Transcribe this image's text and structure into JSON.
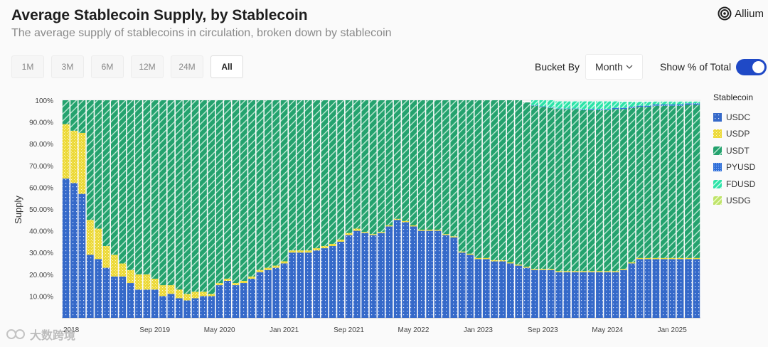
{
  "header": {
    "title": "Average Stablecoin Supply, by Stablecoin",
    "subtitle": "The average supply of stablecoins in circulation, broken down by stablecoin",
    "brand": "Allium"
  },
  "controls": {
    "ranges": [
      {
        "label": "1M",
        "active": false
      },
      {
        "label": "3M",
        "active": false
      },
      {
        "label": "6M",
        "active": false
      },
      {
        "label": "12M",
        "active": false
      },
      {
        "label": "24M",
        "active": false
      },
      {
        "label": "All",
        "active": true
      }
    ],
    "bucket_label": "Bucket By",
    "bucket_value": "Month",
    "show_pct_label": "Show % of Total",
    "show_pct_on": true
  },
  "watermark": "大数跨境",
  "chart_data": {
    "type": "bar",
    "stacked": true,
    "title": "",
    "xlabel": "",
    "ylabel": "Supply",
    "ylim": [
      0,
      100
    ],
    "yticks": [
      "10.00%",
      "20.00%",
      "30.00%",
      "40.00%",
      "50.00%",
      "60.00%",
      "70.00%",
      "80.00%",
      "90.00%",
      "100%"
    ],
    "xtick_labels": [
      {
        "index": 11,
        "label": "Sep 2019"
      },
      {
        "index": 19,
        "label": "May 2020"
      },
      {
        "index": 27,
        "label": "Jan 2021"
      },
      {
        "index": 35,
        "label": "Sep 2021"
      },
      {
        "index": 43,
        "label": "May 2022"
      },
      {
        "index": 51,
        "label": "Jan 2023"
      },
      {
        "index": 59,
        "label": "Sep 2023"
      },
      {
        "index": 67,
        "label": "May 2024"
      },
      {
        "index": 75,
        "label": "Jan 2025"
      }
    ],
    "first_tick_label": "2018",
    "legend_title": "Stablecoin",
    "legend_position": "right",
    "series": [
      {
        "name": "USDC",
        "color": "#3569c9",
        "pattern": "dots",
        "values": [
          64,
          62,
          57,
          29,
          27,
          23,
          19,
          19,
          16,
          13,
          13,
          13,
          10,
          11,
          9,
          8,
          9,
          10,
          10,
          15,
          17,
          15,
          16,
          18,
          21,
          22,
          23,
          25,
          30,
          30,
          30,
          31,
          32,
          33,
          35,
          38,
          40,
          39,
          38,
          39,
          42,
          45,
          44,
          42,
          40,
          40,
          40,
          38,
          37,
          30,
          29,
          27,
          27,
          26,
          26,
          25,
          24,
          23,
          22,
          22,
          22,
          21,
          21,
          21,
          21,
          21,
          21,
          21,
          21,
          22,
          25,
          27,
          27,
          27,
          27,
          27,
          27,
          27,
          27
        ]
      },
      {
        "name": "USDP",
        "color": "#ecd938",
        "pattern": "checker",
        "values": [
          25,
          24,
          28,
          16,
          14,
          10,
          10,
          6,
          6,
          7,
          7,
          5,
          5,
          4,
          4,
          3,
          3,
          2,
          1,
          1,
          1,
          1,
          1,
          1,
          1,
          1,
          1,
          1,
          1,
          1,
          1,
          1,
          1,
          1,
          1,
          1,
          1,
          0.5,
          0.5,
          0.5,
          0.5,
          0.5,
          0.5,
          0.5,
          0.5,
          0.5,
          0.5,
          0.5,
          0.5,
          0.5,
          0.5,
          0.5,
          0.5,
          0.5,
          0.5,
          0.5,
          0.5,
          0.5,
          0.5,
          0.5,
          0.5,
          0.5,
          0.5,
          0.5,
          0.5,
          0.5,
          0.5,
          0.5,
          0.5,
          0.5,
          0.5,
          0.5,
          0.5,
          0.5,
          0.5,
          0.5,
          0.5,
          0.5,
          0.5
        ]
      },
      {
        "name": "USDT",
        "color": "#24a26e",
        "pattern": "diagonal",
        "values": [
          11,
          14,
          15,
          55,
          59,
          67,
          71,
          75,
          78,
          80,
          80,
          82,
          85,
          85,
          87,
          89,
          88,
          88,
          89,
          84,
          82,
          84,
          83,
          81,
          78,
          77,
          76,
          74,
          69,
          69,
          69,
          68,
          67,
          66,
          64,
          61,
          59,
          60.5,
          61.5,
          60.5,
          57.5,
          54.5,
          55.5,
          57.5,
          59.5,
          59.5,
          59.5,
          61.5,
          62.5,
          69.5,
          70.5,
          72.5,
          72.5,
          73.5,
          73.5,
          74.5,
          75.5,
          75.5,
          75,
          74.5,
          74,
          74.5,
          74.5,
          74.5,
          74,
          74,
          74,
          74,
          74.5,
          73.5,
          71,
          69.5,
          69.5,
          70,
          70,
          70,
          70,
          70.5,
          70.5
        ]
      },
      {
        "name": "PYUSD",
        "color": "#2f6fd8",
        "pattern": "checker-small",
        "values": [
          0,
          0,
          0,
          0,
          0,
          0,
          0,
          0,
          0,
          0,
          0,
          0,
          0,
          0,
          0,
          0,
          0,
          0,
          0,
          0,
          0,
          0,
          0,
          0,
          0,
          0,
          0,
          0,
          0,
          0,
          0,
          0,
          0,
          0,
          0,
          0,
          0,
          0,
          0,
          0,
          0,
          0,
          0,
          0,
          0,
          0,
          0,
          0,
          0,
          0,
          0,
          0,
          0,
          0,
          0,
          0,
          0,
          0,
          0.2,
          0.2,
          0.2,
          0.2,
          0.2,
          0.2,
          0.3,
          0.4,
          0.4,
          0.4,
          0.5,
          0.5,
          0.5,
          0.5,
          0.5,
          0.6,
          0.6,
          0.6,
          0.6,
          0.6,
          0.6
        ]
      },
      {
        "name": "FDUSD",
        "color": "#2de3a8",
        "pattern": "diagonal",
        "values": [
          0,
          0,
          0,
          0,
          0,
          0,
          0,
          0,
          0,
          0,
          0,
          0,
          0,
          0,
          0,
          0,
          0,
          0,
          0,
          0,
          0,
          0,
          0,
          0,
          0,
          0,
          0,
          0,
          0,
          0,
          0,
          0,
          0,
          0,
          0,
          0,
          0,
          0,
          0,
          0,
          0,
          0,
          0,
          0,
          0,
          0,
          0,
          0,
          0,
          0,
          0,
          0,
          0,
          0,
          0,
          0,
          0,
          0,
          2.3,
          2.8,
          3.3,
          3.3,
          3.3,
          3.3,
          3.7,
          3.6,
          3.6,
          3.6,
          3,
          2.8,
          2.3,
          1.8,
          1.8,
          1.3,
          1.3,
          1.3,
          1.3,
          0.8,
          0.8
        ]
      },
      {
        "name": "USDG",
        "color": "#bfe36a",
        "pattern": "diagonal",
        "values": [
          0,
          0,
          0,
          0,
          0,
          0,
          0,
          0,
          0,
          0,
          0,
          0,
          0,
          0,
          0,
          0,
          0,
          0,
          0,
          0,
          0,
          0,
          0,
          0,
          0,
          0,
          0,
          0,
          0,
          0,
          0,
          0,
          0,
          0,
          0,
          0,
          0,
          0,
          0,
          0,
          0,
          0,
          0,
          0,
          0,
          0,
          0,
          0,
          0,
          0,
          0,
          0,
          0,
          0,
          0,
          0,
          0,
          0,
          0,
          0,
          0,
          0,
          0,
          0,
          0,
          0,
          0,
          0,
          0,
          0,
          0,
          0,
          0,
          0,
          0,
          0,
          0,
          0,
          0
        ]
      }
    ]
  }
}
